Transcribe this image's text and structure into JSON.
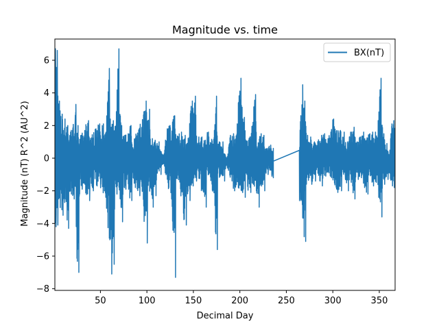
{
  "chart_data": {
    "type": "line",
    "title": "Magnitude vs. time",
    "xlabel": "Decimal Day",
    "ylabel": "Magnitude (nT) R^2 (AU^2)",
    "xlim": [
      1,
      367
    ],
    "ylim": [
      -8.1,
      7.3
    ],
    "xticks": [
      50,
      100,
      150,
      200,
      250,
      300,
      350
    ],
    "yticks": [
      -8,
      -6,
      -4,
      -2,
      0,
      2,
      4,
      6
    ],
    "legend_position": "top-right",
    "grid": false,
    "series": [
      {
        "name": "BX(nT)",
        "color": "#1f77b4",
        "envelope": [
          [
            1,
            6.7,
            -4.2
          ],
          [
            3,
            6.6,
            -4.1
          ],
          [
            5,
            3.5,
            -2.8
          ],
          [
            8,
            2.7,
            -3.5
          ],
          [
            11,
            2.4,
            -2.5
          ],
          [
            14,
            2.0,
            -4.3
          ],
          [
            17,
            1.6,
            -2.2
          ],
          [
            20,
            1.8,
            -2.5
          ],
          [
            23,
            3.3,
            -2.0
          ],
          [
            25,
            2.0,
            -7.0
          ],
          [
            28,
            1.4,
            -1.9
          ],
          [
            32,
            1.7,
            -1.6
          ],
          [
            36,
            2.3,
            -2.6
          ],
          [
            40,
            1.4,
            -2.0
          ],
          [
            44,
            1.8,
            -1.7
          ],
          [
            48,
            2.1,
            -1.6
          ],
          [
            52,
            2.1,
            -2.0
          ],
          [
            56,
            1.6,
            -2.7
          ],
          [
            59,
            5.5,
            -5.0
          ],
          [
            61,
            1.9,
            -7.1
          ],
          [
            63,
            2.3,
            -6.5
          ],
          [
            66,
            2.0,
            -2.2
          ],
          [
            69,
            6.7,
            -1.6
          ],
          [
            72,
            2.0,
            -3.9
          ],
          [
            75,
            1.4,
            -1.9
          ],
          [
            79,
            1.5,
            -1.8
          ],
          [
            82,
            2.0,
            -2.6
          ],
          [
            85,
            1.1,
            -1.5
          ],
          [
            90,
            1.7,
            -2.3
          ],
          [
            94,
            2.3,
            -1.4
          ],
          [
            98,
            3.5,
            -5.2
          ],
          [
            102,
            3.0,
            -1.8
          ],
          [
            105,
            1.2,
            -3.0
          ],
          [
            108,
            1.1,
            -2.3
          ],
          [
            111,
            1.0,
            -1.0
          ],
          [
            118,
            0.1,
            -0.4
          ],
          [
            121,
            1.8,
            -1.5
          ],
          [
            124,
            2.0,
            -2.1
          ],
          [
            127,
            2.2,
            -3.1
          ],
          [
            129,
            2.6,
            -7.3
          ],
          [
            132,
            1.3,
            -1.2
          ],
          [
            136,
            1.6,
            -2.0
          ],
          [
            140,
            1.4,
            -4.1
          ],
          [
            144,
            1.1,
            -2.6
          ],
          [
            148,
            3.5,
            -1.7
          ],
          [
            151,
            3.8,
            -1.4
          ],
          [
            155,
            1.3,
            -1.1
          ],
          [
            158,
            1.3,
            -2.0
          ],
          [
            162,
            1.1,
            -3.0
          ],
          [
            165,
            1.6,
            -0.9
          ],
          [
            169,
            1.0,
            -1.6
          ],
          [
            172,
            1.7,
            -2.9
          ],
          [
            174,
            3.8,
            -5.6
          ],
          [
            177,
            1.0,
            -1.1
          ],
          [
            180,
            1.0,
            -1.4
          ],
          [
            186,
            -0.1,
            -0.5
          ],
          [
            189,
            1.4,
            -1.0
          ],
          [
            192,
            1.5,
            -2.0
          ],
          [
            196,
            1.5,
            -1.8
          ],
          [
            200,
            4.9,
            -2.0
          ],
          [
            204,
            2.5,
            -2.4
          ],
          [
            207,
            1.0,
            -1.8
          ],
          [
            210,
            1.3,
            -2.1
          ],
          [
            213,
            2.0,
            -1.6
          ],
          [
            216,
            3.9,
            -2.0
          ],
          [
            219,
            0.9,
            -3.0
          ],
          [
            222,
            1.5,
            -1.5
          ],
          [
            225,
            1.4,
            -2.0
          ],
          [
            228,
            0.6,
            -1.0
          ],
          [
            232,
            0.8,
            -1.0
          ],
          [
            236,
            0.6,
            -1.2
          ],
          [
            264,
            0.9,
            -2.6
          ],
          [
            267,
            4.5,
            -3.1
          ],
          [
            269,
            3.5,
            -5.1
          ],
          [
            272,
            1.4,
            -1.3
          ],
          [
            275,
            1.3,
            -1.6
          ],
          [
            279,
            1.0,
            -1.4
          ],
          [
            283,
            1.0,
            -0.7
          ],
          [
            287,
            1.4,
            -1.7
          ],
          [
            290,
            1.5,
            -1.1
          ],
          [
            294,
            1.2,
            -0.9
          ],
          [
            297,
            1.6,
            -1.2
          ],
          [
            300,
            2.4,
            -1.3
          ],
          [
            303,
            1.7,
            -2.1
          ],
          [
            307,
            1.7,
            -2.0
          ],
          [
            311,
            1.6,
            -1.0
          ],
          [
            315,
            1.0,
            -2.0
          ],
          [
            318,
            1.6,
            -1.3
          ],
          [
            322,
            1.9,
            -2.5
          ],
          [
            325,
            1.0,
            -1.3
          ],
          [
            329,
            1.3,
            -1.2
          ],
          [
            332,
            1.6,
            -1.6
          ],
          [
            336,
            1.2,
            -2.2
          ],
          [
            339,
            1.5,
            -1.0
          ],
          [
            342,
            1.6,
            -1.7
          ],
          [
            345,
            1.6,
            -1.4
          ],
          [
            348,
            1.4,
            -1.6
          ],
          [
            351,
            4.9,
            -3.6
          ],
          [
            354,
            1.5,
            -1.6
          ],
          [
            357,
            0.9,
            -1.3
          ],
          [
            361,
            0.1,
            -0.9
          ],
          [
            363,
            2.1,
            -1.7
          ],
          [
            365,
            2.3,
            -1.8
          ],
          [
            367,
            1.6,
            -1.0
          ]
        ]
      }
    ]
  }
}
